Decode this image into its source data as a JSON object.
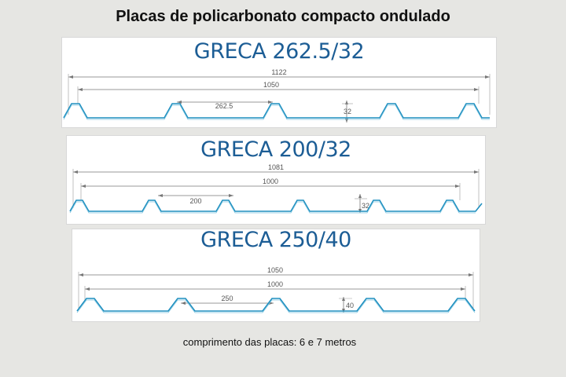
{
  "page": {
    "title": "Placas de policarbonato compacto ondulado",
    "footer": "comprimento das placas: 6 e 7 metros"
  },
  "colors": {
    "profile": "#1f8fbf",
    "title": "#1c5d95",
    "dimension": "#777777"
  },
  "profiles": [
    {
      "title": "GRECA 262.5/32",
      "total_width": "1122",
      "useful_width": "1050",
      "pitch": "262.5",
      "height": "32"
    },
    {
      "title": "GRECA 200/32",
      "total_width": "1081",
      "useful_width": "1000",
      "pitch": "200",
      "height": "32"
    },
    {
      "title": "GRECA 250/40",
      "total_width": "1050",
      "useful_width": "1000",
      "pitch": "250",
      "height": "40"
    }
  ]
}
